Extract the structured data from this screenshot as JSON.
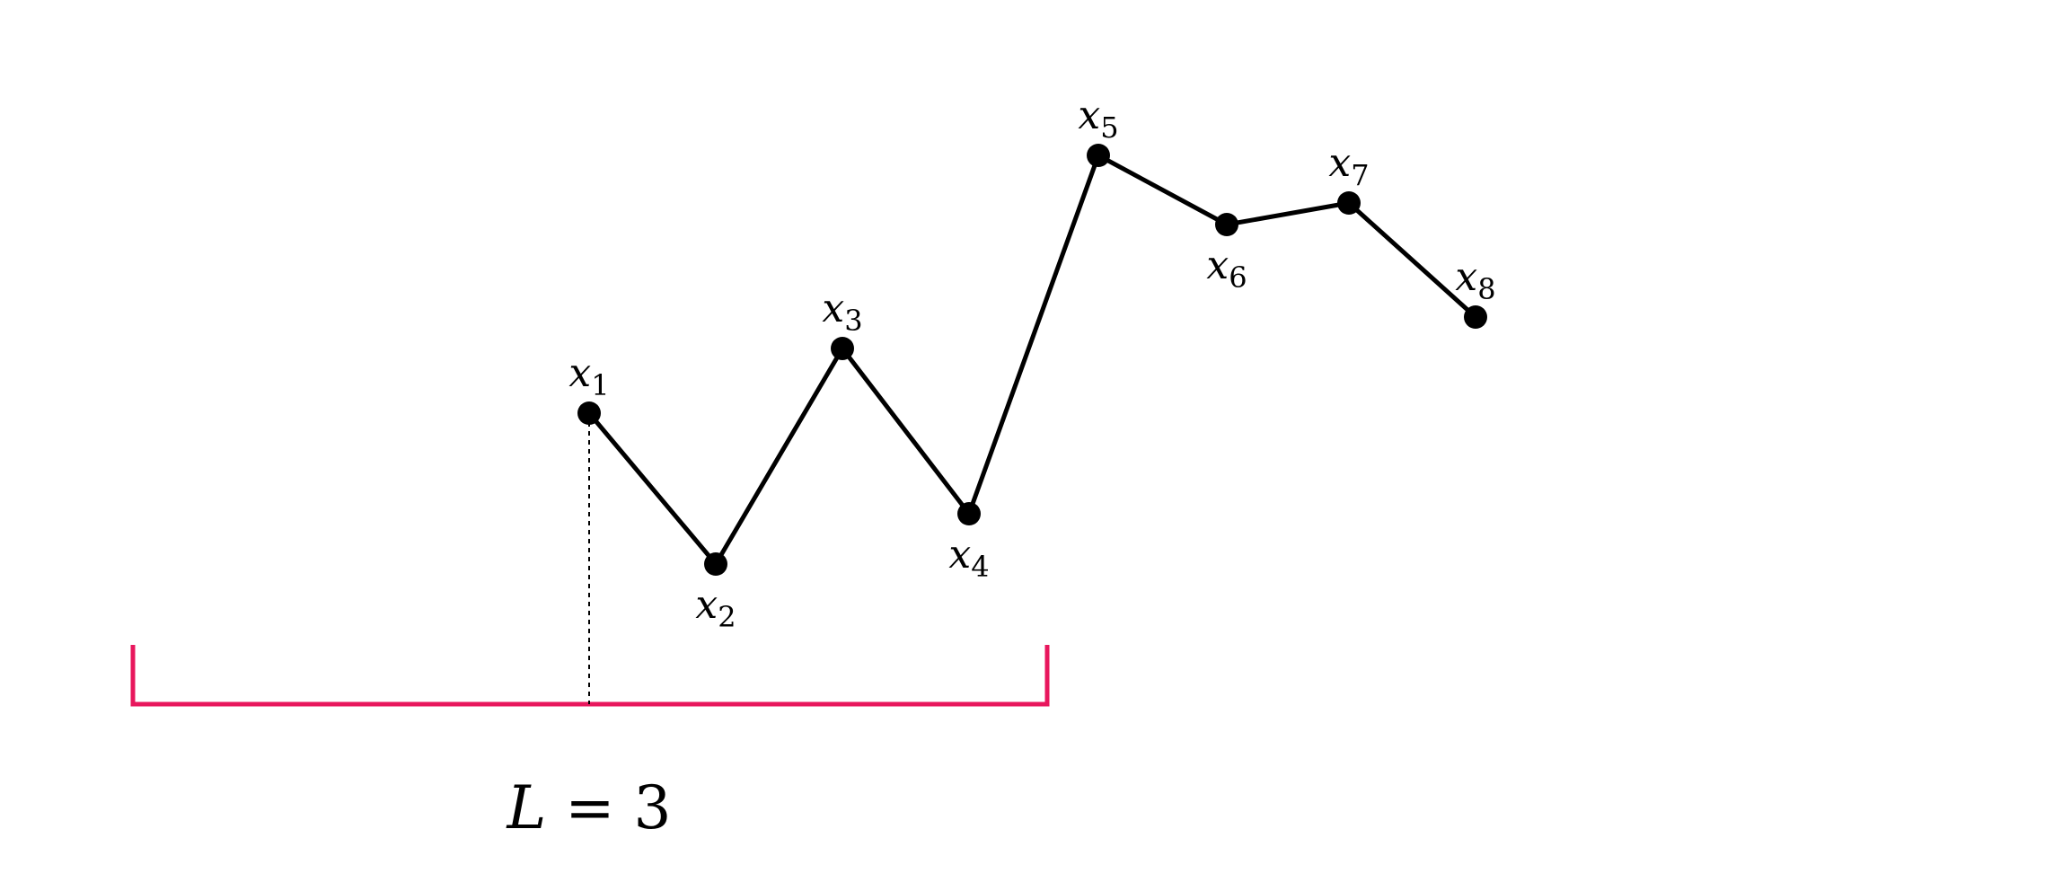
{
  "diagram": {
    "points": [
      {
        "id": "x1",
        "base": "x",
        "sub": "1",
        "label_side": "above"
      },
      {
        "id": "x2",
        "base": "x",
        "sub": "2",
        "label_side": "below"
      },
      {
        "id": "x3",
        "base": "x",
        "sub": "3",
        "label_side": "above"
      },
      {
        "id": "x4",
        "base": "x",
        "sub": "4",
        "label_side": "below"
      },
      {
        "id": "x5",
        "base": "x",
        "sub": "5",
        "label_side": "above"
      },
      {
        "id": "x6",
        "base": "x",
        "sub": "6",
        "label_side": "below"
      },
      {
        "id": "x7",
        "base": "x",
        "sub": "7",
        "label_side": "above"
      },
      {
        "id": "x8",
        "base": "x",
        "sub": "8",
        "label_side": "above"
      }
    ],
    "window": {
      "label_var": "L",
      "label_rest": " = 3",
      "color": "#e8175d"
    },
    "line_color": "#000000"
  }
}
